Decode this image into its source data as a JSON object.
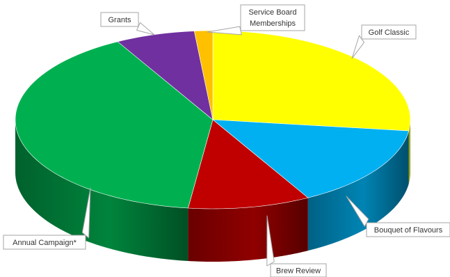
{
  "chart_data": {
    "type": "pie",
    "title": "",
    "style": "3d-exploded-none",
    "legend": "none",
    "slices": [
      {
        "label": "Golf Classic",
        "value": 27.0,
        "color": "#ffff00"
      },
      {
        "label": "Bouquet of Flavours",
        "value": 15.0,
        "color": "#00b0f0"
      },
      {
        "label": "Brew Review",
        "value": 10.0,
        "color": "#c00000"
      },
      {
        "label": "Annual Campaign*",
        "value": 40.0,
        "color": "#00b050"
      },
      {
        "label": "Grants",
        "value": 6.5,
        "color": "#7030a0"
      },
      {
        "label": "Service Board Memberships",
        "value": 1.5,
        "color": "#ffc000"
      }
    ]
  }
}
